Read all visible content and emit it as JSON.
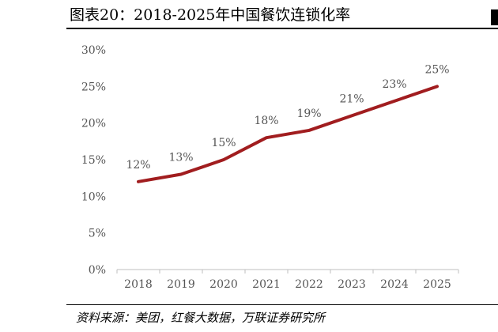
{
  "figure": {
    "title": "图表20：2018-2025年中国餐饮连锁化率",
    "source": "资料来源：美团，红餐大数据，万联证券研究所"
  },
  "chart_data": {
    "type": "line",
    "title": "",
    "xlabel": "",
    "ylabel": "",
    "categories": [
      "2018",
      "2019",
      "2020",
      "2021",
      "2022",
      "2023",
      "2024",
      "2025"
    ],
    "series": [
      {
        "values": [
          12,
          13,
          15,
          18,
          19,
          21,
          23,
          25
        ],
        "data_labels": [
          "12%",
          "13%",
          "15%",
          "18%",
          "19%",
          "21%",
          "23%",
          "25%"
        ],
        "color": "#a11d1f"
      }
    ],
    "ylim": [
      0,
      30
    ],
    "y_ticks": [
      "0%",
      "5%",
      "10%",
      "15%",
      "20%",
      "25%",
      "30%"
    ],
    "grid": false,
    "legend": "none"
  }
}
